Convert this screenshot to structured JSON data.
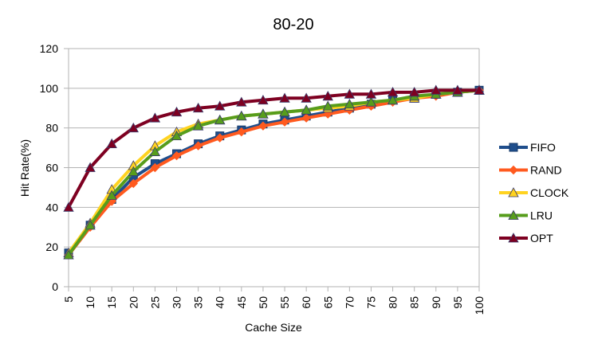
{
  "chart_data": {
    "type": "line",
    "title": "80-20",
    "xlabel": "Cache Size",
    "ylabel": "Hit Rate(%)",
    "ylim": [
      0,
      120
    ],
    "yticks": [
      0,
      20,
      40,
      60,
      80,
      100,
      120
    ],
    "grid": "horizontal",
    "legend_position": "right",
    "x": [
      5,
      10,
      15,
      20,
      25,
      30,
      35,
      40,
      45,
      50,
      55,
      60,
      65,
      70,
      75,
      80,
      85,
      90,
      95,
      100
    ],
    "series": [
      {
        "name": "FIFO",
        "color": "#1f4e8c",
        "marker": "square",
        "values": [
          17,
          31,
          44,
          55,
          62,
          67,
          72,
          76,
          79,
          82,
          84,
          86,
          88,
          90,
          92,
          94,
          95,
          97,
          98,
          99
        ]
      },
      {
        "name": "RAND",
        "color": "#ff5a1f",
        "marker": "diamond",
        "values": [
          16,
          30,
          43,
          52,
          60,
          66,
          71,
          75,
          78,
          81,
          83,
          85,
          87,
          89,
          91,
          93,
          95,
          96,
          98,
          99
        ]
      },
      {
        "name": "CLOCK",
        "color": "#ffd320",
        "marker": "triangle",
        "values": [
          17,
          32,
          49,
          61,
          71,
          78,
          82,
          84,
          86,
          87,
          88,
          89,
          90,
          91,
          93,
          94,
          95,
          97,
          98,
          99
        ]
      },
      {
        "name": "LRU",
        "color": "#579d1c",
        "marker": "triangle",
        "values": [
          16,
          31,
          46,
          58,
          68,
          76,
          81,
          84,
          86,
          87,
          88,
          89,
          91,
          92,
          93,
          94,
          96,
          97,
          98,
          99
        ]
      },
      {
        "name": "OPT",
        "color": "#7e0021",
        "marker": "triangle",
        "values": [
          40,
          60,
          72,
          80,
          85,
          88,
          90,
          91,
          93,
          94,
          95,
          95,
          96,
          97,
          97,
          98,
          98,
          99,
          99,
          99
        ]
      }
    ]
  }
}
